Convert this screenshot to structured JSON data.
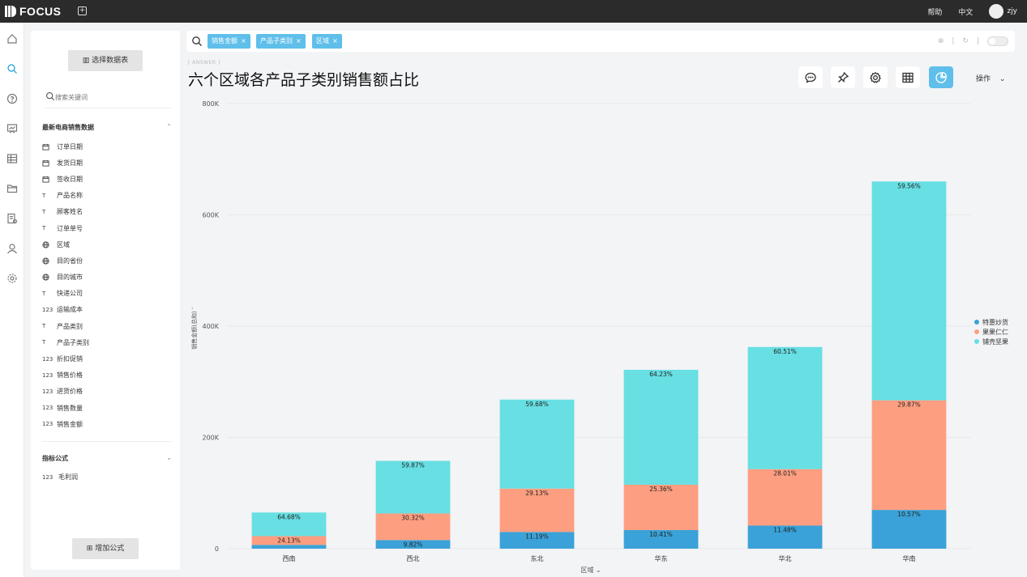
{
  "app": {
    "logo_text": "FOCUS",
    "new_tab_icon": "plus-square-icon"
  },
  "topbar": {
    "help": "帮助",
    "language": "中文",
    "user": "zjy"
  },
  "sidebar": {
    "select_table_label": "选择数据表",
    "search_placeholder": "搜索关键词",
    "table_name": "最新电商销售数据",
    "fields": [
      {
        "icon": "calendar",
        "label": "订单日期"
      },
      {
        "icon": "calendar",
        "label": "发货日期"
      },
      {
        "icon": "calendar",
        "label": "签收日期"
      },
      {
        "icon": "text",
        "label": "产品名称"
      },
      {
        "icon": "text",
        "label": "顾客姓名"
      },
      {
        "icon": "text",
        "label": "订单单号"
      },
      {
        "icon": "globe",
        "label": "区域"
      },
      {
        "icon": "globe",
        "label": "目的省份"
      },
      {
        "icon": "globe",
        "label": "目的城市"
      },
      {
        "icon": "text",
        "label": "快递公司"
      },
      {
        "icon": "number",
        "label": "运输成本"
      },
      {
        "icon": "text",
        "label": "产品类别"
      },
      {
        "icon": "text",
        "label": "产品子类别"
      },
      {
        "icon": "number",
        "label": "折扣促销"
      },
      {
        "icon": "number",
        "label": "销售价格"
      },
      {
        "icon": "number",
        "label": "进货价格"
      },
      {
        "icon": "number",
        "label": "销售数量"
      },
      {
        "icon": "number",
        "label": "销售金额"
      }
    ],
    "formula_group": "指标公式",
    "formula_item": "毛利润",
    "number_glyph": "123",
    "text_glyph": "T",
    "add_formula_label": "增加公式"
  },
  "search": {
    "chips": [
      "销售金额",
      "产品子类别",
      "区域"
    ]
  },
  "answer": {
    "label": "[ ANSWER ]",
    "title": "六个区域各产品子类别销售额占比",
    "operations": "操作"
  },
  "chart_data": {
    "type": "bar",
    "stacked": true,
    "categories": [
      "西南",
      "西北",
      "东北",
      "华东",
      "华北",
      "华南"
    ],
    "ylabel": "销售金额(总和)",
    "xlabel": "区域",
    "ylim": [
      0,
      800000
    ],
    "y_ticks": [
      0,
      200000,
      400000,
      600000,
      800000
    ],
    "y_tick_labels": [
      "0",
      "200K",
      "400K",
      "600K",
      "800K"
    ],
    "grid": true,
    "legend_position": "right",
    "series": [
      {
        "name": "特惠炒货",
        "color": "#3aa2d8",
        "values": [
          6800,
          15500,
          30000,
          33500,
          41500,
          69700
        ],
        "labels": [
          "",
          "9.82%",
          "11.19%",
          "10.41%",
          "11.48%",
          "10.57%"
        ]
      },
      {
        "name": "果果仁仁",
        "color": "#fe9e80",
        "values": [
          15800,
          47800,
          78000,
          81500,
          101500,
          197000
        ],
        "labels": [
          "24.13%",
          "30.32%",
          "29.13%",
          "25.36%",
          "28.01%",
          "29.87%"
        ]
      },
      {
        "name": "铺壳坚果",
        "color": "#67dfe3",
        "values": [
          42400,
          94500,
          160000,
          206500,
          219500,
          393300
        ],
        "labels": [
          "64.68%",
          "59.87%",
          "59.68%",
          "64.23%",
          "60.51%",
          "59.56%"
        ]
      }
    ]
  }
}
